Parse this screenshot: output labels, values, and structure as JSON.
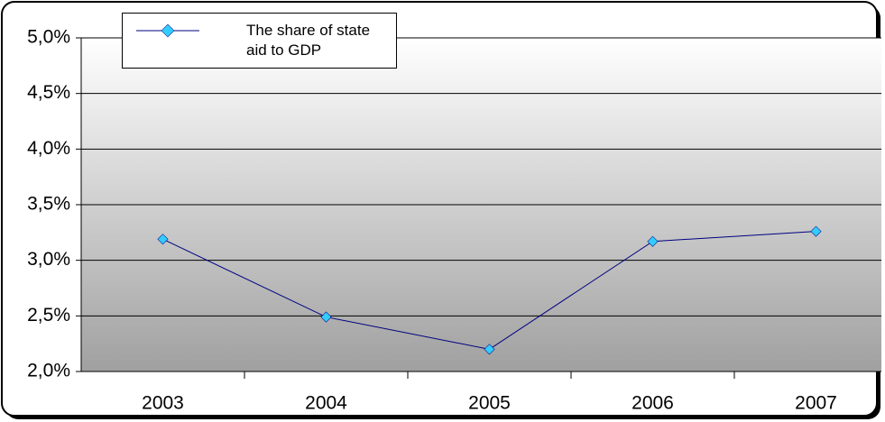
{
  "chart_data": {
    "type": "line",
    "categories": [
      "2003",
      "2004",
      "2005",
      "2006",
      "2007"
    ],
    "series": [
      {
        "name": "The share of state aid to GDP",
        "color": "#000080",
        "marker_color": "#33ccff",
        "values": [
          3.19,
          2.49,
          2.2,
          3.17,
          3.26
        ]
      }
    ],
    "ylim": [
      2.0,
      5.0
    ],
    "yticks": [
      {
        "value": 2.0,
        "label": "2,0%"
      },
      {
        "value": 2.5,
        "label": "2,5%"
      },
      {
        "value": 3.0,
        "label": "3,0%"
      },
      {
        "value": 3.5,
        "label": "3,5%"
      },
      {
        "value": 4.0,
        "label": "4,0%"
      },
      {
        "value": 4.5,
        "label": "4,5%"
      },
      {
        "value": 5.0,
        "label": "5,0%"
      }
    ],
    "grid": true,
    "legend": "top-left"
  }
}
